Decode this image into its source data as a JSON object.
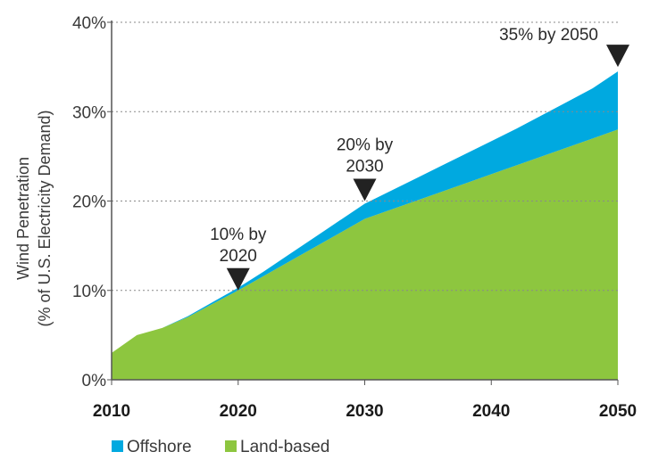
{
  "chart_data": {
    "type": "area",
    "stacked": true,
    "x": [
      2010,
      2012,
      2014,
      2016,
      2018,
      2020,
      2022,
      2024,
      2026,
      2028,
      2030,
      2032,
      2034,
      2036,
      2038,
      2040,
      2042,
      2044,
      2046,
      2048,
      2050
    ],
    "series": [
      {
        "name": "Land-based",
        "color": "#8dc63f",
        "values": [
          3.0,
          5.0,
          5.8,
          7.0,
          8.5,
          10.0,
          11.6,
          13.2,
          14.8,
          16.4,
          18.0,
          19.0,
          20.0,
          21.0,
          22.0,
          23.0,
          24.0,
          25.0,
          26.0,
          27.0,
          28.0
        ]
      },
      {
        "name": "Offshore",
        "color": "#00a9e0",
        "values": [
          0.0,
          0.0,
          0.0,
          0.1,
          0.2,
          0.3,
          0.5,
          0.8,
          1.1,
          1.4,
          1.7,
          2.1,
          2.5,
          2.9,
          3.3,
          3.7,
          4.1,
          4.6,
          5.1,
          5.6,
          6.5
        ]
      }
    ],
    "xlim": [
      2010,
      2050
    ],
    "ylim": [
      0,
      40
    ],
    "xticks": [
      "2010",
      "2020",
      "2030",
      "2040",
      "2050"
    ],
    "yticks": [
      "0%",
      "10%",
      "20%",
      "30%",
      "40%"
    ],
    "ylabel_line1": "Wind Penetration",
    "ylabel_line2": "(% of U.S. Electricity Demand)",
    "grid": "horizontal dotted",
    "legend_position": "bottom-left",
    "annotations": [
      {
        "x": 2020,
        "y": 10,
        "lines": [
          "10% by",
          "2020"
        ]
      },
      {
        "x": 2030,
        "y": 20,
        "lines": [
          "20% by",
          "2030"
        ]
      },
      {
        "x": 2050,
        "y": 35,
        "lines": [
          "35% by 2050"
        ]
      }
    ]
  }
}
